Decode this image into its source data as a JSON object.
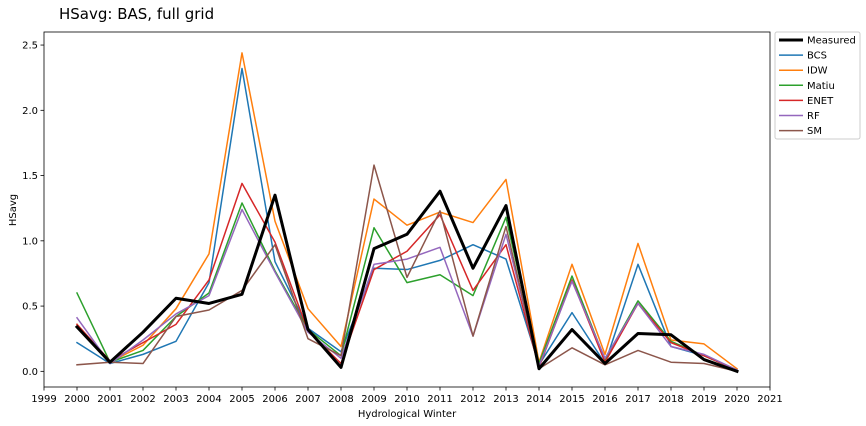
{
  "chart_data": {
    "type": "line",
    "title": "HSavg: BAS, full grid",
    "xlabel": "Hydrological Winter",
    "ylabel": "HSavg",
    "xlim": [
      1999,
      2021
    ],
    "ylim": [
      -0.12,
      2.6
    ],
    "x_ticks": [
      1999,
      2000,
      2001,
      2002,
      2003,
      2004,
      2005,
      2006,
      2007,
      2008,
      2009,
      2010,
      2011,
      2012,
      2013,
      2014,
      2015,
      2016,
      2017,
      2018,
      2019,
      2020,
      2021
    ],
    "y_ticks": [
      0.0,
      0.5,
      1.0,
      1.5,
      2.0,
      2.5
    ],
    "y_tick_labels": [
      "0.0",
      "0.5",
      "1.0",
      "1.5",
      "2.0",
      "2.5"
    ],
    "grid": false,
    "legend_position": "outside-top-right",
    "x": [
      2000,
      2001,
      2002,
      2003,
      2004,
      2005,
      2006,
      2007,
      2008,
      2009,
      2010,
      2011,
      2012,
      2013,
      2014,
      2015,
      2016,
      2017,
      2018,
      2019,
      2020
    ],
    "series": [
      {
        "name": "BCS",
        "color": "#1f77b4",
        "width": 1.5,
        "values": [
          0.22,
          0.06,
          0.13,
          0.23,
          0.68,
          2.32,
          0.84,
          0.33,
          0.15,
          0.79,
          0.78,
          0.85,
          0.97,
          0.86,
          0.05,
          0.45,
          0.06,
          0.82,
          0.19,
          0.12,
          0.01
        ]
      },
      {
        "name": "IDW",
        "color": "#ff7f0e",
        "width": 1.5,
        "values": [
          0.36,
          0.07,
          0.2,
          0.48,
          0.9,
          2.44,
          1.15,
          0.48,
          0.19,
          1.32,
          1.12,
          1.22,
          1.14,
          1.47,
          0.07,
          0.82,
          0.13,
          0.98,
          0.24,
          0.21,
          0.02
        ]
      },
      {
        "name": "Matiu",
        "color": "#2ca02c",
        "width": 1.5,
        "values": [
          0.6,
          0.07,
          0.16,
          0.42,
          0.6,
          1.29,
          0.77,
          0.32,
          0.12,
          1.1,
          0.68,
          0.74,
          0.58,
          1.18,
          0.06,
          0.73,
          0.09,
          0.54,
          0.23,
          0.12,
          0.01
        ]
      },
      {
        "name": "ENET",
        "color": "#d62728",
        "width": 1.5,
        "values": [
          0.36,
          0.08,
          0.22,
          0.36,
          0.7,
          1.44,
          0.99,
          0.31,
          0.06,
          0.78,
          0.92,
          1.2,
          0.62,
          0.97,
          0.03,
          0.7,
          0.07,
          0.52,
          0.22,
          0.12,
          0.01
        ]
      },
      {
        "name": "RF",
        "color": "#9467bd",
        "width": 1.5,
        "values": [
          0.41,
          0.06,
          0.24,
          0.44,
          0.58,
          1.24,
          0.76,
          0.3,
          0.1,
          0.82,
          0.86,
          0.95,
          0.27,
          1.05,
          0.04,
          0.69,
          0.1,
          0.52,
          0.19,
          0.13,
          0.01
        ]
      },
      {
        "name": "SM",
        "color": "#8c564b",
        "width": 1.5,
        "values": [
          0.05,
          0.07,
          0.06,
          0.42,
          0.47,
          0.62,
          0.97,
          0.25,
          0.12,
          1.58,
          0.72,
          1.23,
          0.27,
          1.11,
          0.02,
          0.18,
          0.05,
          0.16,
          0.07,
          0.06,
          0.0
        ]
      },
      {
        "name": "Measured",
        "color": "#000000",
        "width": 3,
        "values": [
          0.34,
          0.07,
          0.3,
          0.56,
          0.52,
          0.59,
          1.35,
          0.32,
          0.03,
          0.94,
          1.05,
          1.38,
          0.79,
          1.27,
          0.02,
          0.32,
          0.06,
          0.29,
          0.28,
          0.09,
          0.0
        ]
      }
    ],
    "legend_order": [
      "Measured",
      "BCS",
      "IDW",
      "Matiu",
      "ENET",
      "RF",
      "SM"
    ]
  }
}
